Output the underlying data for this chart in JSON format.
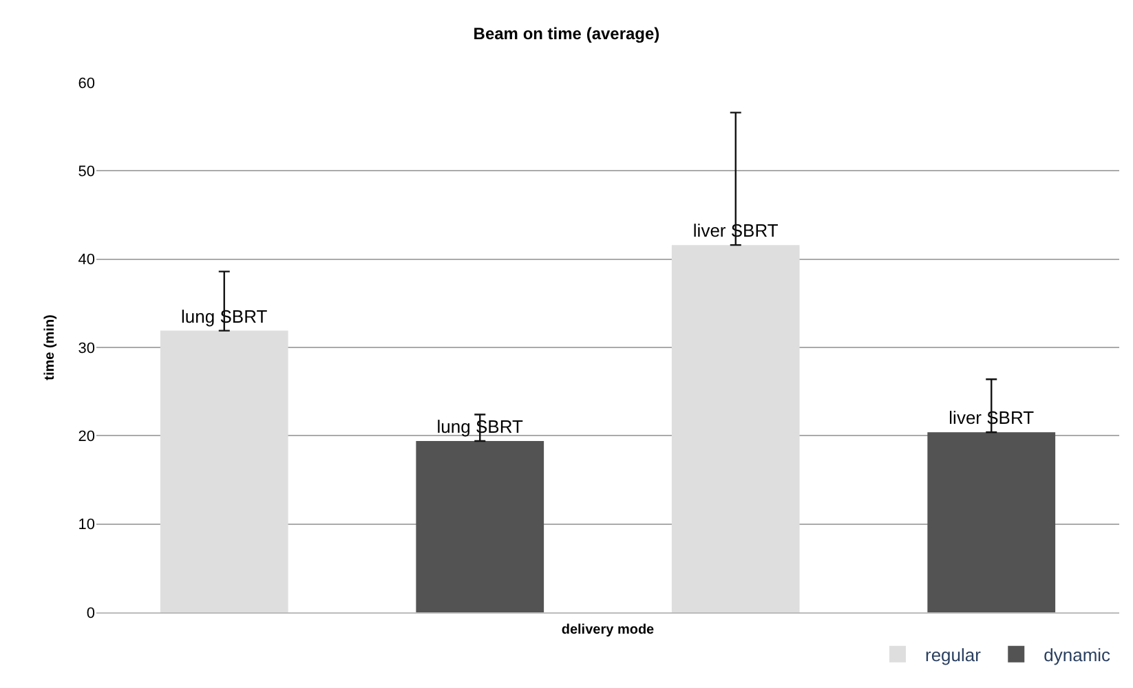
{
  "chart_data": {
    "type": "bar",
    "title": "Beam on time (average)",
    "xlabel": "delivery mode",
    "ylabel": "time (min)",
    "categories": [
      null,
      null,
      null,
      null
    ],
    "series": [
      {
        "name": "regular",
        "color": "#dedede",
        "values": [
          31.9,
          null,
          41.6,
          null
        ],
        "errors": [
          [
            31.9,
            38.6
          ],
          null,
          [
            41.6,
            56.6
          ],
          null
        ],
        "value_labels": [
          "lung SBRT",
          null,
          "liver SBRT",
          null
        ]
      },
      {
        "name": "dynamic",
        "color": "#535353",
        "values": [
          null,
          19.4,
          null,
          20.4
        ],
        "errors": [
          null,
          [
            19.4,
            22.4
          ],
          null,
          [
            20.4,
            26.4
          ]
        ],
        "value_labels": [
          null,
          "lung SBRT",
          null,
          "liver SBRT"
        ]
      }
    ],
    "ylim": [
      0,
      60
    ],
    "yticks": [
      0,
      10,
      20,
      30,
      40,
      50,
      60
    ],
    "grid": "y",
    "legend": "bottom right",
    "tick_labels": "y"
  }
}
